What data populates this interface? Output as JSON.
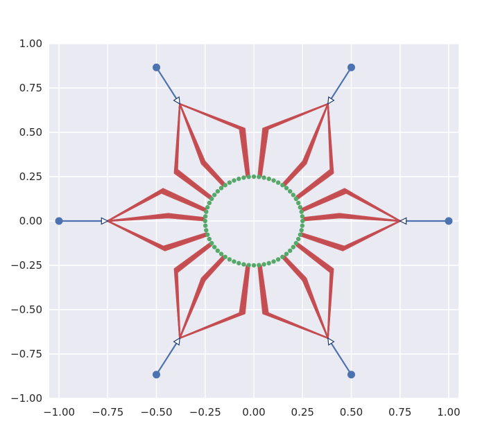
{
  "chart_data": {
    "type": "line",
    "title": "",
    "xlabel": "",
    "ylabel": "",
    "xlim": [
      -1.05,
      1.05
    ],
    "ylim": [
      -1.0,
      1.0
    ],
    "grid": true,
    "colors": {
      "background": "#eaeaf2",
      "grid": "#ffffff",
      "outer_series": "#4c72b0",
      "fan_series": "#c44e52",
      "inner_points": "#55a868"
    },
    "x_ticks": [
      "−1.00",
      "−0.75",
      "−0.50",
      "−0.25",
      "0.00",
      "0.25",
      "0.50",
      "0.75",
      "1.00"
    ],
    "y_ticks": [
      "1.00",
      "0.75",
      "0.50",
      "0.25",
      "0.00",
      "−0.25",
      "−0.50",
      "−0.75",
      "−1.00"
    ],
    "x_tick_values": [
      -1.0,
      -0.75,
      -0.5,
      -0.25,
      0.0,
      0.25,
      0.5,
      0.75,
      1.0
    ],
    "y_tick_values": [
      1.0,
      0.75,
      0.5,
      0.25,
      0.0,
      -0.25,
      -0.5,
      -0.75,
      -1.0
    ],
    "sources": [
      {
        "x": 1.0,
        "y": 0.0,
        "tip_x": 0.75,
        "tip_y": 0.0
      },
      {
        "x": 0.5,
        "y": 0.866,
        "tip_x": 0.38,
        "tip_y": 0.66
      },
      {
        "x": -0.5,
        "y": 0.866,
        "tip_x": -0.38,
        "tip_y": 0.66
      },
      {
        "x": -1.0,
        "y": 0.0,
        "tip_x": -0.75,
        "tip_y": 0.0
      },
      {
        "x": -0.5,
        "y": -0.866,
        "tip_x": -0.38,
        "tip_y": -0.66
      },
      {
        "x": 0.5,
        "y": -0.866,
        "tip_x": 0.38,
        "tip_y": -0.66
      }
    ],
    "fan_bands": [
      {
        "hub": 0,
        "mid_x": 0.44,
        "mid_y": 0.03,
        "end_x": 0.253,
        "end_y": 0.01
      },
      {
        "hub": 0,
        "mid_x": 0.46,
        "mid_y": -0.155,
        "end_x": 0.24,
        "end_y": -0.075
      },
      {
        "hub": 0,
        "mid_x": 0.47,
        "mid_y": 0.17,
        "end_x": 0.245,
        "end_y": 0.06
      },
      {
        "hub": 1,
        "mid_x": 0.4,
        "mid_y": 0.28,
        "end_x": 0.22,
        "end_y": 0.13
      },
      {
        "hub": 1,
        "mid_x": 0.26,
        "mid_y": 0.33,
        "end_x": 0.15,
        "end_y": 0.2
      },
      {
        "hub": 1,
        "mid_x": 0.06,
        "mid_y": 0.52,
        "end_x": 0.03,
        "end_y": 0.25
      },
      {
        "hub": 2,
        "mid_x": -0.4,
        "mid_y": 0.28,
        "end_x": -0.22,
        "end_y": 0.13
      },
      {
        "hub": 2,
        "mid_x": -0.26,
        "mid_y": 0.33,
        "end_x": -0.15,
        "end_y": 0.2
      },
      {
        "hub": 2,
        "mid_x": -0.06,
        "mid_y": 0.52,
        "end_x": -0.03,
        "end_y": 0.25
      },
      {
        "hub": 3,
        "mid_x": -0.44,
        "mid_y": 0.03,
        "end_x": -0.253,
        "end_y": 0.01
      },
      {
        "hub": 3,
        "mid_x": -0.46,
        "mid_y": -0.155,
        "end_x": -0.24,
        "end_y": -0.075
      },
      {
        "hub": 3,
        "mid_x": -0.47,
        "mid_y": 0.17,
        "end_x": -0.245,
        "end_y": 0.06
      },
      {
        "hub": 4,
        "mid_x": -0.4,
        "mid_y": -0.28,
        "end_x": -0.22,
        "end_y": -0.13
      },
      {
        "hub": 4,
        "mid_x": -0.26,
        "mid_y": -0.33,
        "end_x": -0.15,
        "end_y": -0.2
      },
      {
        "hub": 4,
        "mid_x": -0.06,
        "mid_y": -0.52,
        "end_x": -0.03,
        "end_y": -0.25
      },
      {
        "hub": 5,
        "mid_x": 0.4,
        "mid_y": -0.28,
        "end_x": 0.22,
        "end_y": -0.13
      },
      {
        "hub": 5,
        "mid_x": 0.26,
        "mid_y": -0.33,
        "end_x": 0.15,
        "end_y": -0.2
      },
      {
        "hub": 5,
        "mid_x": 0.06,
        "mid_y": -0.52,
        "end_x": 0.03,
        "end_y": -0.25
      }
    ],
    "inner_ring": {
      "center_x": 0.0,
      "center_y": 0.0,
      "radius": 0.25
    }
  }
}
